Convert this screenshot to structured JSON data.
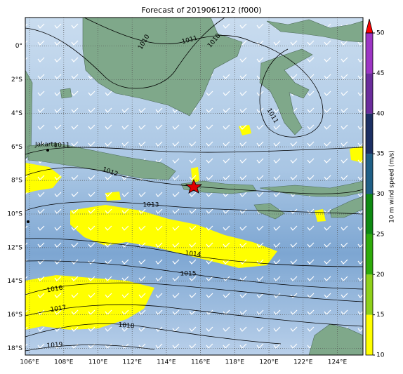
{
  "title": "Forecast of 2019061212 (f000)",
  "map": {
    "xlim": [
      105.75,
      125.5
    ],
    "ylim": [
      -18.4,
      1.7
    ],
    "xticks": [
      {
        "value": 106,
        "label": "106°E"
      },
      {
        "value": 108,
        "label": "108°E"
      },
      {
        "value": 110,
        "label": "110°E"
      },
      {
        "value": 112,
        "label": "112°E"
      },
      {
        "value": 114,
        "label": "114°E"
      },
      {
        "value": 116,
        "label": "116°E"
      },
      {
        "value": 118,
        "label": "118°E"
      },
      {
        "value": 120,
        "label": "120°E"
      },
      {
        "value": 122,
        "label": "122°E"
      },
      {
        "value": 124,
        "label": "124°E"
      }
    ],
    "yticks": [
      {
        "value": 0,
        "label": "0°"
      },
      {
        "value": -2,
        "label": "2°S"
      },
      {
        "value": -4,
        "label": "4°S"
      },
      {
        "value": -6,
        "label": "6°S"
      },
      {
        "value": -8,
        "label": "8°S"
      },
      {
        "value": -10,
        "label": "10°S"
      },
      {
        "value": -12,
        "label": "12°S"
      },
      {
        "value": -14,
        "label": "14°S"
      },
      {
        "value": -16,
        "label": "16°S"
      },
      {
        "value": -18,
        "label": "18°S"
      }
    ],
    "grid": true
  },
  "colorbar": {
    "label": "10 m wind speed (m/s)",
    "lim": [
      10,
      50
    ],
    "ticks": [
      10,
      15,
      20,
      25,
      30,
      35,
      40,
      45,
      50
    ],
    "colors": [
      "#ffff00",
      "#8fd11a",
      "#2eab0a",
      "#0e8a12",
      "#1f5f86",
      "#1c2f63",
      "#6b2c9c",
      "#9d35c4"
    ],
    "extend_color": "#ff0000"
  },
  "isobar_labels": [
    "1010",
    "1011",
    "1010",
    "1011",
    "1011",
    "1012",
    "1013",
    "1014",
    "1015",
    "1016",
    "1017",
    "1018",
    "1019"
  ],
  "city": "Jakarta"
}
